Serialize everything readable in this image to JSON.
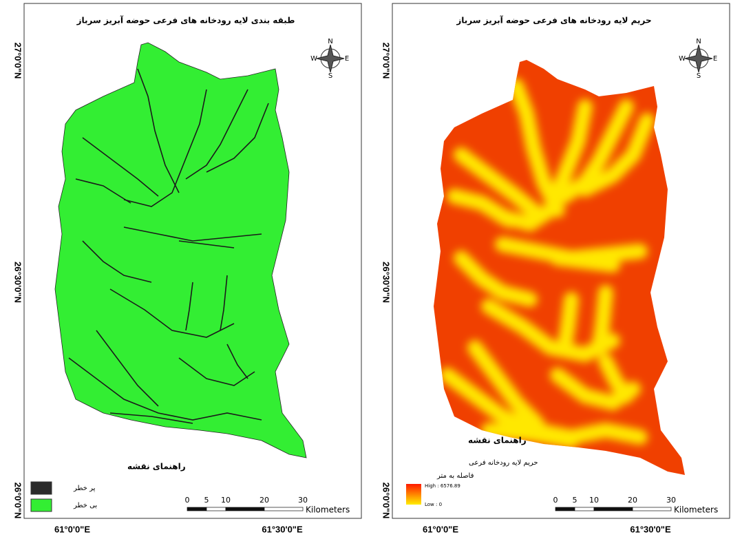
{
  "maps": [
    {
      "title": "طبقه بندی لایه رودخانه های فرعی حوضه آبریز سرباز",
      "compass": {
        "n": "N",
        "s": "S",
        "e": "E",
        "w": "W"
      },
      "lat_labels": [
        "27°0'0\"N",
        "26°30'0\"N",
        "26°0'0\"N"
      ],
      "lon_labels": [
        "61°0'0\"E",
        "61°30'0\"E"
      ],
      "legend": {
        "title": "راهنمای نقشه",
        "items": [
          {
            "label": "پر خطر",
            "color": "#2b2b2b"
          },
          {
            "label": "بی خطر",
            "color": "#33ee33"
          }
        ]
      },
      "scale": {
        "ticks": [
          0,
          5,
          10,
          20,
          30
        ],
        "unit": "Kilometers"
      }
    },
    {
      "title": "حریم لایه رودخانه های فرعی حوضه آبریز سرباز",
      "compass": {
        "n": "N",
        "s": "S",
        "e": "E",
        "w": "W"
      },
      "lat_labels": [
        "27°0'0\"N",
        "26°30'0\"N",
        "26°0'0\"N"
      ],
      "lon_labels": [
        "61°0'0\"E",
        "61°30'0\"E"
      ],
      "legend": {
        "title": "راهنمای نقشه",
        "layer": "حریم لایه رودخانه فرعی",
        "unit": "فاصله به متر",
        "high": "High : 6576.89",
        "low": "Low : 0"
      },
      "scale": {
        "ticks": [
          0,
          5,
          10,
          20,
          30
        ],
        "unit": "Kilometers"
      }
    }
  ]
}
